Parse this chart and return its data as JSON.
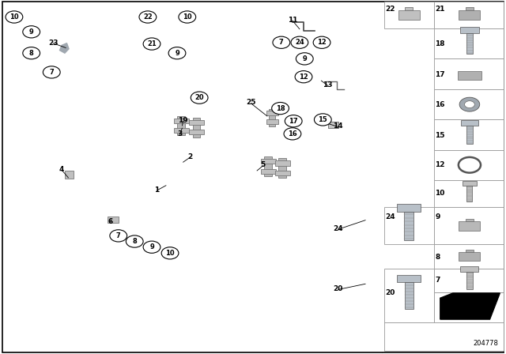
{
  "background_color": "#ffffff",
  "fig_width": 6.4,
  "fig_height": 4.48,
  "dpi": 100,
  "diagram_part_number": "204778"
}
